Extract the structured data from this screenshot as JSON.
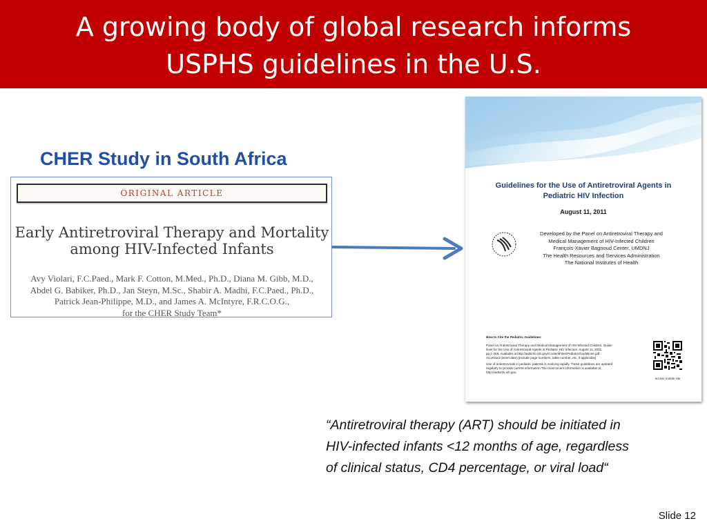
{
  "slide": {
    "title_lines": [
      "A growing body of global research informs",
      "USPHS guidelines in the U.S."
    ],
    "subheading": "CHER Study in South Africa",
    "quote_lines": [
      "“Antiretroviral therapy (ART) should be initiated in",
      "HIV-infected infants <12 months of age, regardless",
      "of clinical status, CD4 percentage, or viral load“"
    ],
    "slide_number": "Slide 12"
  },
  "article": {
    "header_label": "ORIGINAL ARTICLE",
    "title_lines": [
      "Early Antiretroviral Therapy and Mortality",
      "among HIV-Infected Infants"
    ],
    "author_lines": [
      "Avy Violari, F.C.Paed., Mark F. Cotton, M.Med., Ph.D., Diana M. Gibb, M.D.,",
      "Abdel G. Babiker, Ph.D., Jan Steyn, M.Sc., Shabir A. Madhi, F.C.Paed., Ph.D.,",
      "Patrick Jean-Philippe, M.D., and James A. McIntyre, F.R.C.O.G.,",
      "for the CHER Study Team*"
    ]
  },
  "guidelines_cover": {
    "title_lines": [
      "Guidelines for the Use of Antiretroviral Agents in",
      "Pediatric HIV Infection"
    ],
    "date": "August 11, 2011",
    "developer_lines": [
      "Developed by the Panel on Antiretroviral Therapy and",
      "Medical Management of HIV-Infected Children",
      "François-Xavier Bagnoud Center, UMDNJ",
      "The Health Resources and Services Administration",
      "The National Institutes of Health"
    ],
    "cite_heading": "How to Cite the Pediatric Guidelines:",
    "cite_lines": [
      "Panel on Antiretroviral Therapy and Medical Management of HIV-Infected Children. Guide-",
      "lines for the Use of Antiretroviral Agents in Pediatric HIV Infection. August 11, 2011;",
      "pp 1-268. Available at http://aidsinfo.nih.gov/ContentFiles/PediatricGuidelines.pdf.",
      "Accessed (insert date) [include page numbers, table number, etc. if applicable]"
    ],
    "note_lines": [
      "Use of antiretrovirals in pediatric patients is evolving rapidly. These guidelines are updated",
      "regularly to provide current information.The most recent information is available at",
      "http://aidsinfo.nih.gov."
    ],
    "qr_caption": "access mobile site"
  },
  "colors": {
    "title_bar": "#c00000",
    "subheading": "#1f4fa8",
    "arrow": "#4a7bc0"
  },
  "icons": {
    "arrow": "right-arrow-icon",
    "logo": "hhs-eagle-logo-icon",
    "qr": "qr-code-icon"
  }
}
